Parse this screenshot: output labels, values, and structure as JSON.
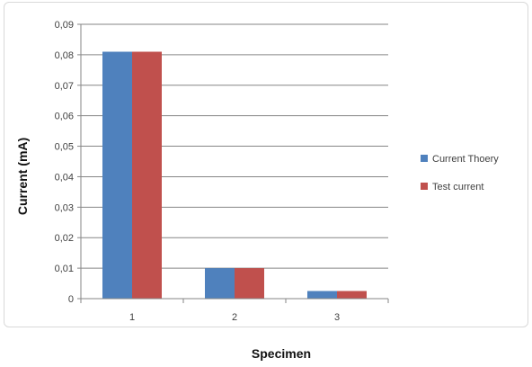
{
  "chart_data": {
    "type": "bar",
    "title": "",
    "xlabel": "Specimen",
    "ylabel": "Current (mA)",
    "categories": [
      "1",
      "2",
      "3"
    ],
    "series": [
      {
        "name": "Current Thoery",
        "values": [
          0.081,
          0.01,
          0.0025
        ],
        "color": "#4f81bd"
      },
      {
        "name": "Test current",
        "values": [
          0.081,
          0.01,
          0.0025
        ],
        "color": "#c0504d"
      }
    ],
    "ylim": [
      0,
      0.09
    ],
    "yticks": [
      "0",
      "0,01",
      "0,02",
      "0,03",
      "0,04",
      "0,05",
      "0,06",
      "0,07",
      "0,08",
      "0,09"
    ],
    "grid": true,
    "legend_position": "right"
  }
}
